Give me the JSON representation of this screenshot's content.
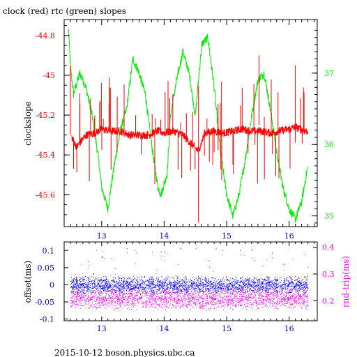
{
  "header": {
    "title": "clock (red) rtc (green) slopes",
    "footer": "2015-10-12 boson.physics.ubc.ca"
  },
  "colors": {
    "clock": "#ff0000",
    "rtc": "#00ee00",
    "offset": "#0000ff",
    "rndtrip": "#ff00ff",
    "axis": "#000000"
  },
  "chart_data": [
    {
      "type": "line",
      "title": "clock (red) rtc (green) slopes",
      "ylabel": "clockslope",
      "xlim": [
        12.4,
        16.45
      ],
      "ylim": [
        -45.76,
        -44.72
      ],
      "y2lim": [
        34.85,
        37.75
      ],
      "xticks": [
        "13",
        "14",
        "15",
        "16"
      ],
      "yticks": [
        "-44.8",
        "-45",
        "-45.2",
        "-45.4",
        "-45.6"
      ],
      "y2ticks": [
        "37",
        "36",
        "35"
      ],
      "grid": false,
      "series": [
        {
          "name": "clock",
          "axis": "left",
          "color": "#ff0000",
          "x": [
            12.52,
            12.6,
            12.75,
            12.9,
            13.0,
            13.15,
            13.3,
            13.45,
            13.6,
            13.75,
            13.9,
            14.0,
            14.15,
            14.3,
            14.45,
            14.55,
            14.65,
            14.8,
            14.95,
            15.1,
            15.25,
            15.4,
            15.55,
            15.7,
            15.85,
            16.0,
            16.1,
            16.25
          ],
          "y": [
            -45.31,
            -45.36,
            -45.3,
            -45.29,
            -45.27,
            -45.28,
            -45.28,
            -45.3,
            -45.3,
            -45.3,
            -45.28,
            -45.29,
            -45.28,
            -45.3,
            -45.35,
            -45.38,
            -45.29,
            -45.28,
            -45.29,
            -45.28,
            -45.27,
            -45.28,
            -45.28,
            -45.29,
            -45.28,
            -45.27,
            -45.26,
            -45.28
          ]
        },
        {
          "name": "rtc",
          "axis": "right",
          "color": "#00ee00",
          "x": [
            12.47,
            12.5,
            12.55,
            12.65,
            12.75,
            12.85,
            12.95,
            13.0,
            13.1,
            13.2,
            13.3,
            13.4,
            13.5,
            13.6,
            13.7,
            13.8,
            13.9,
            13.95,
            14.05,
            14.1,
            14.2,
            14.3,
            14.4,
            14.5,
            14.6,
            14.7,
            14.8,
            14.9,
            15.0,
            15.1,
            15.2,
            15.3,
            15.4,
            15.5,
            15.6,
            15.7,
            15.8,
            15.9,
            16.0,
            16.1,
            16.2,
            16.3
          ],
          "y": [
            37.6,
            37.1,
            36.7,
            37.0,
            36.8,
            36.4,
            35.8,
            35.4,
            35.1,
            35.7,
            36.2,
            36.5,
            37.2,
            37.0,
            36.7,
            36.0,
            35.4,
            35.3,
            35.6,
            36.4,
            36.9,
            37.3,
            37.0,
            36.4,
            37.4,
            37.5,
            36.8,
            35.9,
            35.3,
            35.0,
            35.3,
            35.8,
            36.4,
            36.9,
            37.0,
            36.5,
            35.9,
            35.4,
            35.1,
            34.95,
            35.2,
            35.7
          ]
        }
      ]
    },
    {
      "type": "scatter",
      "ylabel": "offset(ms)",
      "y2label": "rnd-trip(ms)",
      "xlim": [
        12.4,
        16.45
      ],
      "ylim": [
        -0.105,
        0.125
      ],
      "y2lim": [
        0.125,
        0.42
      ],
      "xticks": [
        "13",
        "14",
        "15",
        "16"
      ],
      "yticks": [
        "0.1",
        "0.05",
        "0",
        "-0.05",
        "-0.1"
      ],
      "y2ticks": [
        "0.4",
        "0.3",
        "0.2"
      ],
      "grid": false,
      "series": [
        {
          "name": "offset",
          "axis": "left",
          "color": "#0000ff",
          "x": [
            12.5,
            13.0,
            13.5,
            14.0,
            14.5,
            15.0,
            15.5,
            16.0,
            16.3
          ],
          "y": [
            0.0,
            0.0,
            0.002,
            0.0,
            0.0,
            0.0,
            0.001,
            0.0,
            0.0
          ]
        },
        {
          "name": "rnd-trip",
          "axis": "right",
          "color": "#ff00ff",
          "x": [
            12.5,
            13.0,
            13.5,
            14.0,
            14.5,
            15.0,
            15.5,
            16.0,
            16.3
          ],
          "y": [
            0.21,
            0.21,
            0.21,
            0.2,
            0.21,
            0.21,
            0.21,
            0.21,
            0.21
          ]
        }
      ]
    }
  ]
}
